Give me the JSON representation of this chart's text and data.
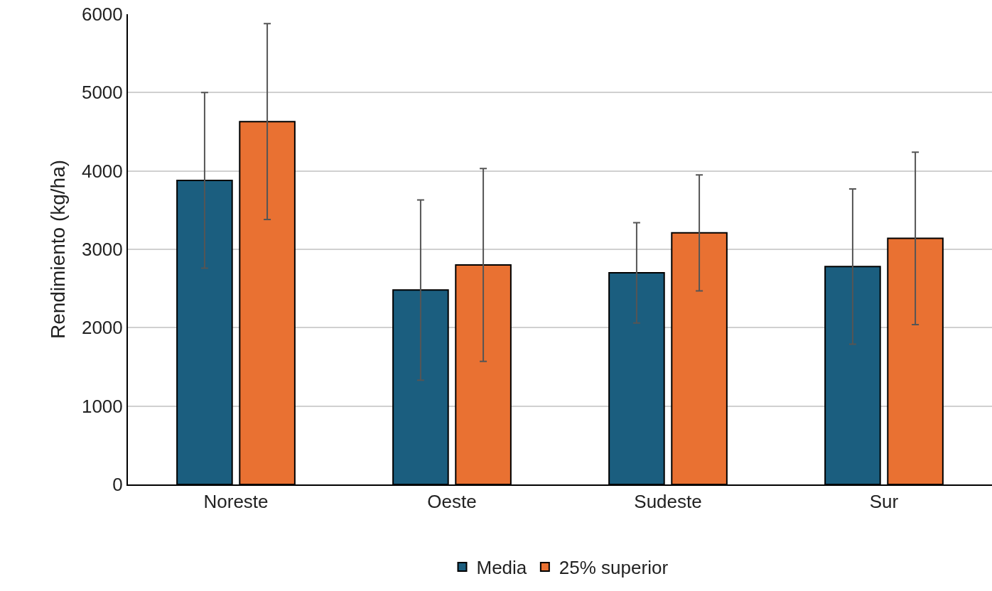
{
  "chart_data": {
    "type": "bar",
    "ylabel": "Rendimiento (kg/ha)",
    "categories": [
      "Noreste",
      "Oeste",
      "Sudeste",
      "Sur"
    ],
    "series": [
      {
        "name": "Media",
        "color": "#1b5e7f",
        "values": [
          3880,
          2480,
          2700,
          2780
        ],
        "errors": [
          1120,
          1150,
          640,
          990
        ]
      },
      {
        "name": "25% superior",
        "color": "#e97132",
        "values": [
          4630,
          2800,
          3210,
          3140
        ],
        "errors": [
          1250,
          1230,
          740,
          1100
        ]
      }
    ],
    "ylim": [
      0,
      6000
    ],
    "yticks": [
      0,
      1000,
      2000,
      3000,
      4000,
      5000,
      6000
    ],
    "grid": "y",
    "legend": "bottom"
  }
}
